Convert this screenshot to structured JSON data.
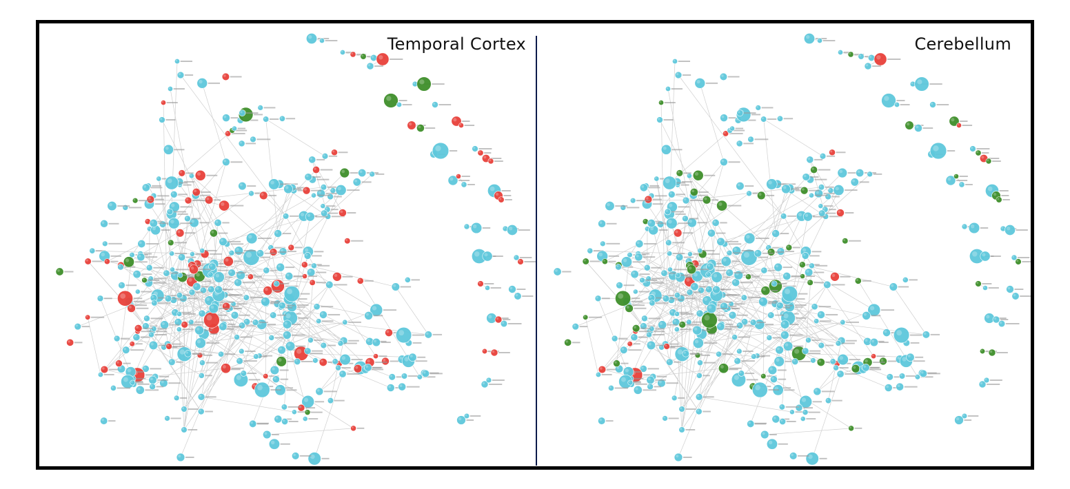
{
  "figure": {
    "panels": [
      {
        "id": "left",
        "title": "Temporal Cortex",
        "seed": 11,
        "red_ratio": 0.2,
        "green_ratio": 0.04
      },
      {
        "id": "right",
        "title": "Cerebellum",
        "seed": 11,
        "red_ratio": 0.05,
        "green_ratio": 0.13
      }
    ]
  },
  "style": {
    "node_colors": {
      "blue": "#5ec8dc",
      "red": "#e8413a",
      "green": "#3f8f2b"
    },
    "edge_color": "#cfcfcf",
    "label_color": "#9a9a9a",
    "divider_color": "#0b1a4a",
    "border_color": "#000000"
  }
}
